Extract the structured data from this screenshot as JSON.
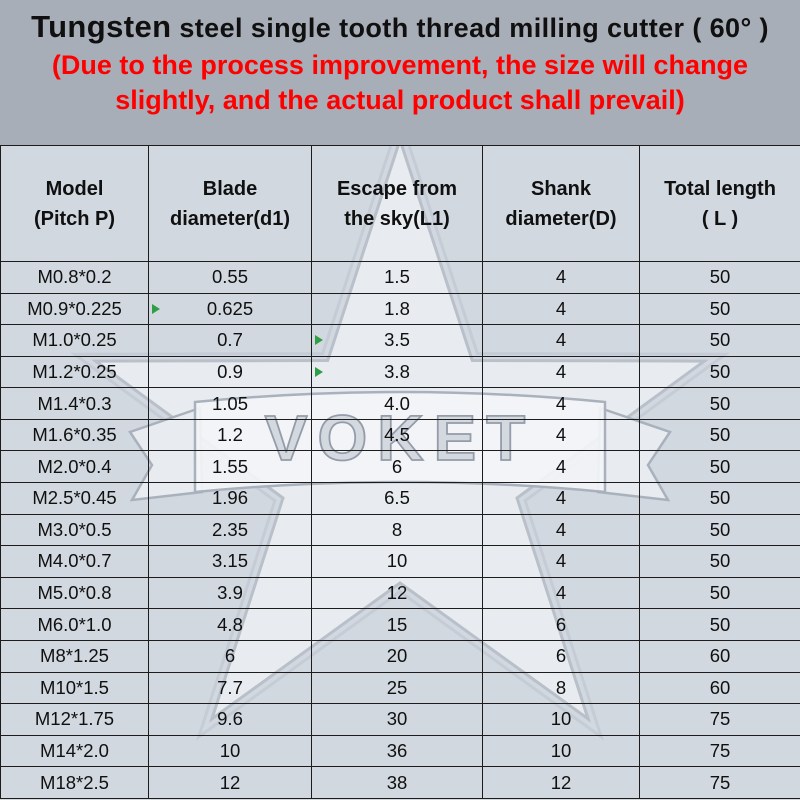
{
  "colors": {
    "page_background": "#d2d8e0",
    "header_background": "#a8aeb7",
    "disclaimer_text": "#ff0000",
    "table_border": "#1c1c1c",
    "marker_green": "#2f9e44",
    "watermark_fill": "#eef1f5"
  },
  "header": {
    "title_word1": "Tungsten",
    "title_rest": "steel single tooth thread milling cutter ( 60° )",
    "disclaimer_line1": "(Due to the process improvement, the size will change",
    "disclaimer_line2": "slightly, and the actual product shall prevail)"
  },
  "watermark": {
    "text": "VOKET"
  },
  "table": {
    "columns": [
      {
        "line1": "Model",
        "line2": "(Pitch P)"
      },
      {
        "line1": "Blade",
        "line2": "diameter(d1)"
      },
      {
        "line1": "Escape from",
        "line2": "the sky(L1)"
      },
      {
        "line1": "Shank",
        "line2": "diameter(D)"
      },
      {
        "line1": "Total length",
        "line2": "( L )"
      }
    ],
    "rows": [
      [
        "M0.8*0.2",
        "0.55",
        "1.5",
        "4",
        "50"
      ],
      [
        "M0.9*0.225",
        "0.625",
        "1.8",
        "4",
        "50"
      ],
      [
        "M1.0*0.25",
        "0.7",
        "3.5",
        "4",
        "50"
      ],
      [
        "M1.2*0.25",
        "0.9",
        "3.8",
        "4",
        "50"
      ],
      [
        "M1.4*0.3",
        "1.05",
        "4.0",
        "4",
        "50"
      ],
      [
        "M1.6*0.35",
        "1.2",
        "4.5",
        "4",
        "50"
      ],
      [
        "M2.0*0.4",
        "1.55",
        "6",
        "4",
        "50"
      ],
      [
        "M2.5*0.45",
        "1.96",
        "6.5",
        "4",
        "50"
      ],
      [
        "M3.0*0.5",
        "2.35",
        "8",
        "4",
        "50"
      ],
      [
        "M4.0*0.7",
        "3.15",
        "10",
        "4",
        "50"
      ],
      [
        "M5.0*0.8",
        "3.9",
        "12",
        "4",
        "50"
      ],
      [
        "M6.0*1.0",
        "4.8",
        "15",
        "6",
        "50"
      ],
      [
        "M8*1.25",
        "6",
        "20",
        "6",
        "60"
      ],
      [
        "M10*1.5",
        "7.7",
        "25",
        "8",
        "60"
      ],
      [
        "M12*1.75",
        "9.6",
        "30",
        "10",
        "75"
      ],
      [
        "M14*2.0",
        "10",
        "36",
        "10",
        "75"
      ],
      [
        "M18*2.5",
        "12",
        "38",
        "12",
        "75"
      ]
    ],
    "green_markers": [
      {
        "row": 1,
        "col": 1
      },
      {
        "row": 2,
        "col": 2
      },
      {
        "row": 3,
        "col": 2
      }
    ]
  }
}
